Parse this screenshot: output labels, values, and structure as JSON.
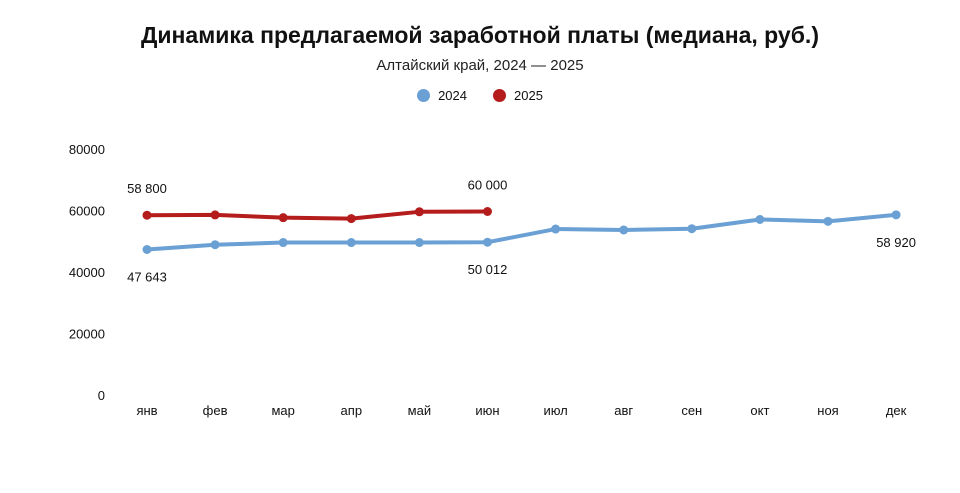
{
  "chart_data": {
    "type": "line",
    "title": "Динамика предлагаемой заработной платы (медиана, руб.)",
    "subtitle": "Алтайский край, 2024 — 2025",
    "categories": [
      "янв",
      "фев",
      "мар",
      "апр",
      "май",
      "июн",
      "июл",
      "авг",
      "сен",
      "окт",
      "ноя",
      "дек"
    ],
    "yticks": [
      "0",
      "20000",
      "40000",
      "60000",
      "80000"
    ],
    "ylim": [
      0,
      80000
    ],
    "legend_position": "top-center",
    "grid": false,
    "series": [
      {
        "name": "2024",
        "color": "#6aa0d4",
        "values": [
          47643,
          49200,
          49900,
          49900,
          49900,
          50012,
          54300,
          54000,
          54400,
          57400,
          56800,
          58920
        ]
      },
      {
        "name": "2025",
        "color": "#b51c1c",
        "values": [
          58800,
          58900,
          58000,
          57700,
          59900,
          60000,
          null,
          null,
          null,
          null,
          null,
          null
        ]
      }
    ],
    "annotations": [
      {
        "series": 1,
        "index": 0,
        "text": "58 800",
        "position": "above"
      },
      {
        "series": 1,
        "index": 5,
        "text": "60 000",
        "position": "above"
      },
      {
        "series": 0,
        "index": 0,
        "text": "47 643",
        "position": "below"
      },
      {
        "series": 0,
        "index": 5,
        "text": "50 012",
        "position": "below"
      },
      {
        "series": 0,
        "index": 11,
        "text": "58 920",
        "position": "below"
      }
    ]
  }
}
